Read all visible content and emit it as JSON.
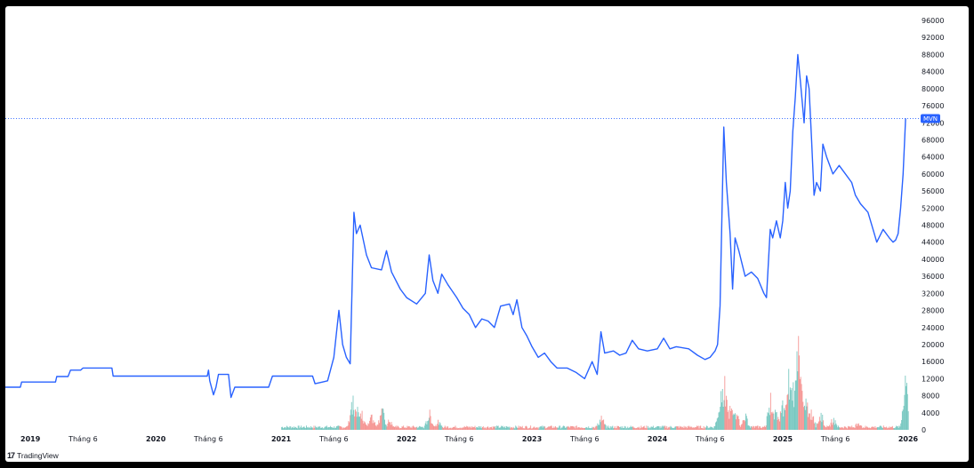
{
  "chart_data": {
    "type": "line",
    "ticker": "MVN",
    "y_axis": {
      "min": 0,
      "max": 96000,
      "ticks": [
        0,
        4000,
        8000,
        12000,
        16000,
        20000,
        24000,
        28000,
        32000,
        36000,
        40000,
        44000,
        48000,
        52000,
        56000,
        60000,
        64000,
        68000,
        72000,
        76000,
        80000,
        84000,
        88000,
        92000,
        96000
      ]
    },
    "x_axis": {
      "ticks": [
        {
          "label": "2019",
          "year": true,
          "pos": 2019.0
        },
        {
          "label": "Tháng 6",
          "year": false,
          "pos": 2019.42
        },
        {
          "label": "2020",
          "year": true,
          "pos": 2020.0
        },
        {
          "label": "Tháng 6",
          "year": false,
          "pos": 2020.42
        },
        {
          "label": "2021",
          "year": true,
          "pos": 2021.0
        },
        {
          "label": "Tháng 6",
          "year": false,
          "pos": 2021.42
        },
        {
          "label": "2022",
          "year": true,
          "pos": 2022.0
        },
        {
          "label": "Tháng 6",
          "year": false,
          "pos": 2022.42
        },
        {
          "label": "2023",
          "year": true,
          "pos": 2023.0
        },
        {
          "label": "Tháng 6",
          "year": false,
          "pos": 2023.42
        },
        {
          "label": "2024",
          "year": true,
          "pos": 2024.0
        },
        {
          "label": "Tháng 6",
          "year": false,
          "pos": 2024.42
        },
        {
          "label": "2025",
          "year": true,
          "pos": 2025.0
        },
        {
          "label": "Tháng 6",
          "year": false,
          "pos": 2025.42
        },
        {
          "label": "2026",
          "year": true,
          "pos": 2026.0
        }
      ]
    },
    "current_price": 73000,
    "series": [
      {
        "color": "#2962ff",
        "points": [
          [
            2018.8,
            10000
          ],
          [
            2018.92,
            10000
          ],
          [
            2018.93,
            11200
          ],
          [
            2019.2,
            11200
          ],
          [
            2019.21,
            12500
          ],
          [
            2019.3,
            12500
          ],
          [
            2019.32,
            14000
          ],
          [
            2019.4,
            14000
          ],
          [
            2019.42,
            14500
          ],
          [
            2019.65,
            14500
          ],
          [
            2019.66,
            12600
          ],
          [
            2020.41,
            12600
          ],
          [
            2020.42,
            14000
          ],
          [
            2020.43,
            11500
          ],
          [
            2020.46,
            8200
          ],
          [
            2020.48,
            10000
          ],
          [
            2020.5,
            13000
          ],
          [
            2020.58,
            13000
          ],
          [
            2020.6,
            7600
          ],
          [
            2020.63,
            10000
          ],
          [
            2020.9,
            10000
          ],
          [
            2020.93,
            12600
          ],
          [
            2021.25,
            12600
          ],
          [
            2021.27,
            10800
          ],
          [
            2021.33,
            11200
          ],
          [
            2021.37,
            11500
          ],
          [
            2021.42,
            17000
          ],
          [
            2021.46,
            28000
          ],
          [
            2021.49,
            20000
          ],
          [
            2021.52,
            17000
          ],
          [
            2021.55,
            15500
          ],
          [
            2021.58,
            51000
          ],
          [
            2021.6,
            46000
          ],
          [
            2021.63,
            48000
          ],
          [
            2021.68,
            41000
          ],
          [
            2021.72,
            38000
          ],
          [
            2021.8,
            37500
          ],
          [
            2021.84,
            42000
          ],
          [
            2021.88,
            37000
          ],
          [
            2021.95,
            33000
          ],
          [
            2022.0,
            31000
          ],
          [
            2022.08,
            29500
          ],
          [
            2022.15,
            32000
          ],
          [
            2022.18,
            41000
          ],
          [
            2022.21,
            35000
          ],
          [
            2022.25,
            32000
          ],
          [
            2022.28,
            36500
          ],
          [
            2022.33,
            34000
          ],
          [
            2022.4,
            31000
          ],
          [
            2022.45,
            28500
          ],
          [
            2022.5,
            27000
          ],
          [
            2022.55,
            24000
          ],
          [
            2022.6,
            26000
          ],
          [
            2022.65,
            25500
          ],
          [
            2022.7,
            24000
          ],
          [
            2022.75,
            29000
          ],
          [
            2022.82,
            29500
          ],
          [
            2022.85,
            27000
          ],
          [
            2022.88,
            30500
          ],
          [
            2022.92,
            24000
          ],
          [
            2022.96,
            22000
          ],
          [
            2023.0,
            19500
          ],
          [
            2023.05,
            17000
          ],
          [
            2023.1,
            18000
          ],
          [
            2023.15,
            16000
          ],
          [
            2023.2,
            14500
          ],
          [
            2023.28,
            14500
          ],
          [
            2023.35,
            13500
          ],
          [
            2023.42,
            12000
          ],
          [
            2023.48,
            16000
          ],
          [
            2023.52,
            13000
          ],
          [
            2023.55,
            23000
          ],
          [
            2023.58,
            18000
          ],
          [
            2023.65,
            18500
          ],
          [
            2023.7,
            17500
          ],
          [
            2023.75,
            18000
          ],
          [
            2023.8,
            21000
          ],
          [
            2023.85,
            19000
          ],
          [
            2023.92,
            18500
          ],
          [
            2024.0,
            19000
          ],
          [
            2024.05,
            21500
          ],
          [
            2024.1,
            19000
          ],
          [
            2024.15,
            19500
          ],
          [
            2024.25,
            19000
          ],
          [
            2024.32,
            17500
          ],
          [
            2024.38,
            16500
          ],
          [
            2024.42,
            17000
          ],
          [
            2024.46,
            18500
          ],
          [
            2024.48,
            20000
          ],
          [
            2024.5,
            29000
          ],
          [
            2024.53,
            71000
          ],
          [
            2024.55,
            58000
          ],
          [
            2024.58,
            46000
          ],
          [
            2024.6,
            33000
          ],
          [
            2024.62,
            45000
          ],
          [
            2024.65,
            42000
          ],
          [
            2024.7,
            36000
          ],
          [
            2024.75,
            37000
          ],
          [
            2024.8,
            35500
          ],
          [
            2024.85,
            32000
          ],
          [
            2024.87,
            31000
          ],
          [
            2024.9,
            47000
          ],
          [
            2024.92,
            45000
          ],
          [
            2024.95,
            49000
          ],
          [
            2024.98,
            45000
          ],
          [
            2025.0,
            49000
          ],
          [
            2025.02,
            58000
          ],
          [
            2025.04,
            52000
          ],
          [
            2025.06,
            56000
          ],
          [
            2025.08,
            70000
          ],
          [
            2025.1,
            78000
          ],
          [
            2025.12,
            88000
          ],
          [
            2025.14,
            82000
          ],
          [
            2025.17,
            72000
          ],
          [
            2025.19,
            83000
          ],
          [
            2025.21,
            80000
          ],
          [
            2025.23,
            68000
          ],
          [
            2025.25,
            55000
          ],
          [
            2025.27,
            58000
          ],
          [
            2025.3,
            56000
          ],
          [
            2025.32,
            67000
          ],
          [
            2025.35,
            64000
          ],
          [
            2025.4,
            60000
          ],
          [
            2025.45,
            62000
          ],
          [
            2025.5,
            60000
          ],
          [
            2025.55,
            58000
          ],
          [
            2025.58,
            55000
          ],
          [
            2025.62,
            53000
          ],
          [
            2025.68,
            51000
          ],
          [
            2025.72,
            47000
          ],
          [
            2025.75,
            44000
          ],
          [
            2025.8,
            47000
          ],
          [
            2025.85,
            45000
          ],
          [
            2025.88,
            44000
          ],
          [
            2025.9,
            44500
          ],
          [
            2025.92,
            46000
          ],
          [
            2025.94,
            52000
          ],
          [
            2025.96,
            60000
          ],
          [
            2025.98,
            73000
          ]
        ]
      }
    ],
    "volume": {
      "up_color": "#26a69a",
      "down_color": "#ef5350",
      "scale_max": 96000,
      "events": [
        [
          2021.57,
          9800
        ],
        [
          2021.6,
          7000
        ],
        [
          2021.64,
          5000
        ],
        [
          2021.72,
          4000
        ],
        [
          2021.8,
          6500
        ],
        [
          2021.86,
          3000
        ],
        [
          2022.18,
          5000
        ],
        [
          2022.25,
          2500
        ],
        [
          2023.55,
          4000
        ],
        [
          2024.5,
          10000
        ],
        [
          2024.53,
          14000
        ],
        [
          2024.55,
          9000
        ],
        [
          2024.58,
          7000
        ],
        [
          2024.62,
          6000
        ],
        [
          2024.7,
          4000
        ],
        [
          2024.9,
          9000
        ],
        [
          2024.94,
          6000
        ],
        [
          2025.0,
          8000
        ],
        [
          2025.04,
          17000
        ],
        [
          2025.08,
          13000
        ],
        [
          2025.12,
          24000
        ],
        [
          2025.15,
          10000
        ],
        [
          2025.18,
          9000
        ],
        [
          2025.22,
          6000
        ],
        [
          2025.3,
          5000
        ],
        [
          2025.4,
          3500
        ],
        [
          2025.6,
          2500
        ],
        [
          2025.98,
          14500
        ]
      ]
    }
  },
  "branding": {
    "logo": "17",
    "name": "TradingView"
  }
}
